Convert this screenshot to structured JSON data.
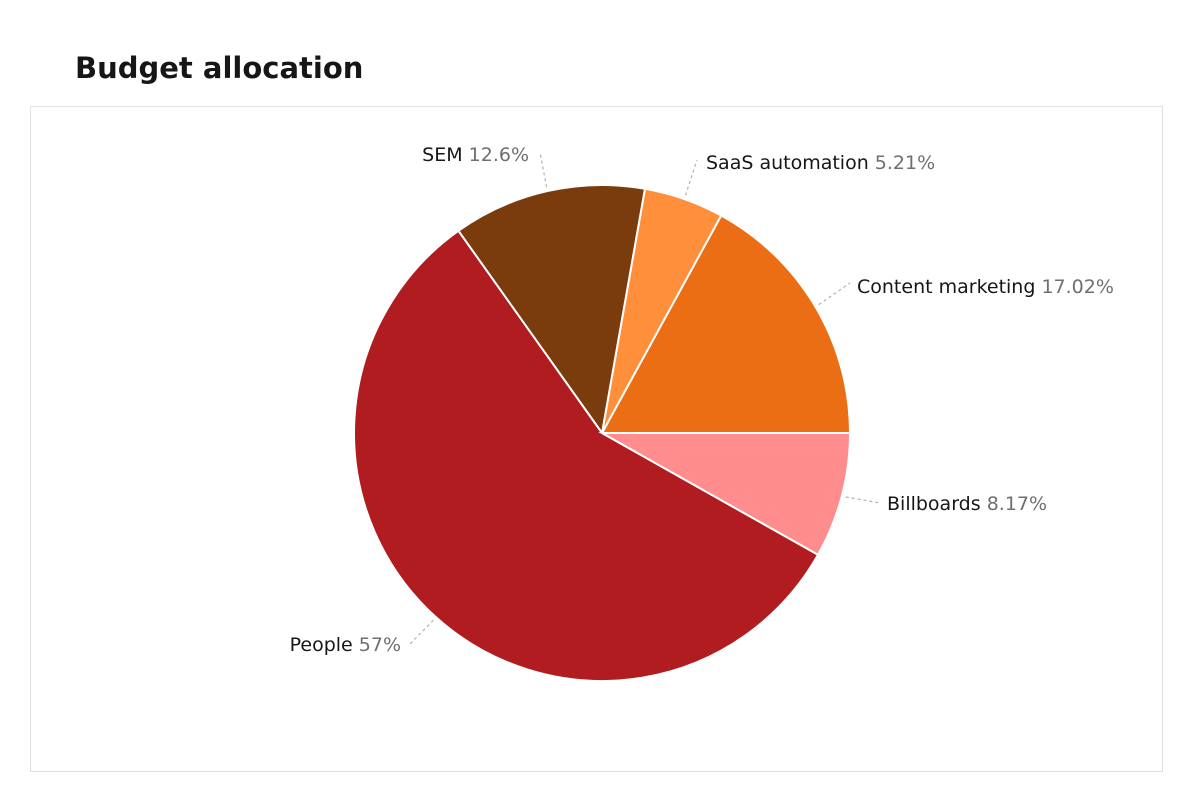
{
  "chart_data": {
    "type": "pie",
    "title": "Budget allocation",
    "slices": [
      {
        "label": "Content marketing",
        "value": 17.02,
        "value_label": "17.02%",
        "color": "#eb6e14"
      },
      {
        "label": "SaaS automation",
        "value": 5.21,
        "value_label": "5.21%",
        "color": "#ff8f3a"
      },
      {
        "label": "SEM",
        "value": 12.6,
        "value_label": "12.6%",
        "color": "#7a3b0d"
      },
      {
        "label": "People",
        "value": 57,
        "value_label": "57%",
        "color": "#b01c1f"
      },
      {
        "label": "Billboards",
        "value": 8.17,
        "value_label": "8.17%",
        "color": "#ff8d8d"
      }
    ],
    "legend": "none",
    "labels": "outside-with-leader-lines"
  }
}
